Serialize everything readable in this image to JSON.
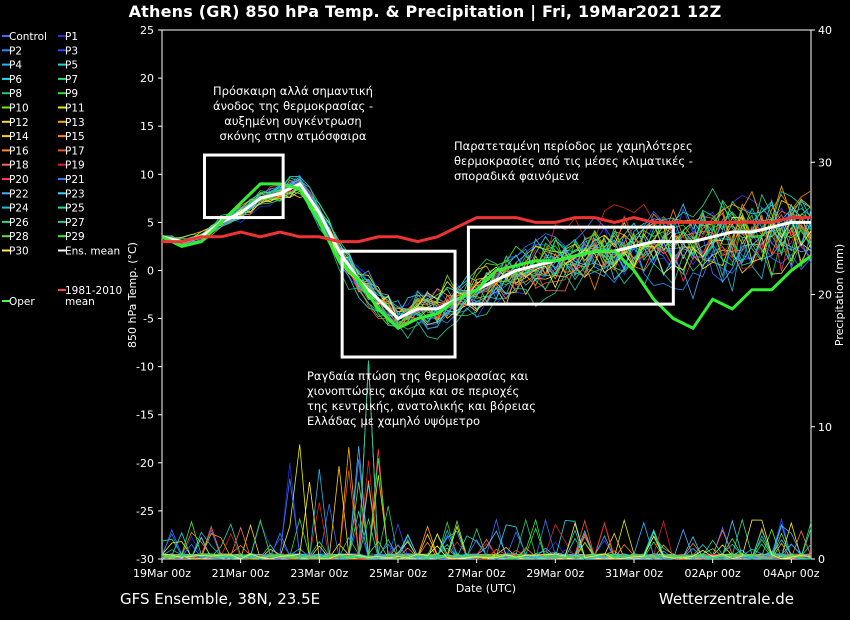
{
  "title": "Athens  (GR)  850 hPa Temp. & Precipitation | Fri, 19Mar2021 12Z",
  "footer": {
    "left": "GFS Ensemble, 38N, 23.5E",
    "right": "Wetterzentrale.de"
  },
  "annotations": {
    "rise": [
      "Πρόσκαιρη αλλά σημαντική",
      "άνοδος της θερμοκρασίας -",
      "αυξημένη συγκέντρωση",
      "σκόνης στην ατμόσφαιρα"
    ],
    "cold": [
      "Παρατεταμένη περίοδος με χαμηλότερες",
      "θερμοκρασίες από τις μέσες κλιματικές -",
      "σποραδικά φαινόμενα"
    ],
    "drop": [
      "Ραγδαία πτώση της θερμοκρασίας και",
      "χιονοπτώσεις ακόμα και σε περιοχές",
      "της κεντρικής, ανατολικής και βόρειας",
      "Ελλάδας με χαμηλό υψόμετρο"
    ]
  },
  "chart_data": {
    "type": "line",
    "xlabel": "Date (UTC)",
    "ylabel": "850 hPa Temp. (°C)",
    "y2label": "Precipitation (mm)",
    "ylim": [
      -30,
      25
    ],
    "y2lim": [
      0,
      40
    ],
    "yticks": [
      25,
      20,
      15,
      10,
      5,
      0,
      -5,
      -10,
      -15,
      -20,
      -25,
      -30
    ],
    "y2ticks": [
      40,
      30,
      20,
      10,
      0
    ],
    "xticks": [
      "19Mar 00z",
      "21Mar 00z",
      "23Mar 00z",
      "25Mar 00z",
      "27Mar 00z",
      "29Mar 00z",
      "31Mar 00z",
      "02Apr 00z",
      "04Apr 00z"
    ],
    "x_range_days": [
      0,
      16.5
    ],
    "legend": {
      "placement": "left",
      "entries": [
        {
          "name": "Control",
          "color": "#3a6cff"
        },
        {
          "name": "P1",
          "color": "#2233dd"
        },
        {
          "name": "P2",
          "color": "#2a8cff"
        },
        {
          "name": "P3",
          "color": "#3344ff"
        },
        {
          "name": "P4",
          "color": "#22bbff"
        },
        {
          "name": "P5",
          "color": "#22d6cc"
        },
        {
          "name": "P6",
          "color": "#22ddee"
        },
        {
          "name": "P7",
          "color": "#22dd88"
        },
        {
          "name": "P8",
          "color": "#22cc66"
        },
        {
          "name": "P9",
          "color": "#33dd33"
        },
        {
          "name": "P10",
          "color": "#66ee00"
        },
        {
          "name": "P11",
          "color": "#eeee00"
        },
        {
          "name": "P12",
          "color": "#eedd44"
        },
        {
          "name": "P13",
          "color": "#ffaa00"
        },
        {
          "name": "P14",
          "color": "#ffcc22"
        },
        {
          "name": "P15",
          "color": "#ff8800"
        },
        {
          "name": "P16",
          "color": "#ff8833"
        },
        {
          "name": "P17",
          "color": "#ee5522"
        },
        {
          "name": "P18",
          "color": "#ff6655"
        },
        {
          "name": "P19",
          "color": "#dd2222"
        },
        {
          "name": "P20",
          "color": "#ff3355"
        },
        {
          "name": "P21",
          "color": "#3377ff"
        },
        {
          "name": "P22",
          "color": "#55aaff"
        },
        {
          "name": "P23",
          "color": "#44ccff"
        },
        {
          "name": "P24",
          "color": "#22bbdd"
        },
        {
          "name": "P25",
          "color": "#22ddaa"
        },
        {
          "name": "P26",
          "color": "#22dd88"
        },
        {
          "name": "P27",
          "color": "#22cc99"
        },
        {
          "name": "P28",
          "color": "#66dd44"
        },
        {
          "name": "P29",
          "color": "#33ee33"
        },
        {
          "name": "P30",
          "color": "#ffee44"
        },
        {
          "name": "Ens. mean",
          "color": "#ffffff"
        },
        {
          "name": "Oper",
          "color": "#44ff44"
        },
        {
          "name": "1981-2010 mean",
          "color": "#ff4444"
        }
      ]
    },
    "series": [
      {
        "name": "Ens. mean",
        "x": [
          0,
          0.5,
          1,
          1.5,
          2,
          2.5,
          3,
          3.5,
          4,
          4.5,
          5,
          5.5,
          6,
          6.5,
          7,
          7.5,
          8,
          8.5,
          9,
          9.5,
          10,
          10.5,
          11,
          11.5,
          12,
          12.5,
          13,
          13.5,
          14,
          14.5,
          15,
          15.5,
          16,
          16.5
        ],
        "y": [
          3.5,
          3,
          3.5,
          5,
          6,
          7.5,
          8,
          9,
          6,
          2,
          -1,
          -3,
          -5,
          -4,
          -4,
          -3,
          -2,
          -1,
          0,
          0.5,
          1,
          1.5,
          2,
          2,
          2.5,
          3,
          3,
          3,
          3.5,
          4,
          4,
          4.5,
          5,
          5
        ]
      },
      {
        "name": "Oper",
        "x": [
          0,
          0.5,
          1,
          1.5,
          2,
          2.5,
          3,
          3.5,
          4,
          4.5,
          5,
          5.5,
          6,
          6.5,
          7,
          7.5,
          8,
          8.5,
          9,
          9.5,
          10,
          10.5,
          11,
          11.5,
          12,
          12.5,
          13,
          13.5,
          14,
          14.5,
          15,
          15.5,
          16,
          16.5
        ],
        "y": [
          3.5,
          2.5,
          3,
          5,
          7,
          9,
          9,
          8.5,
          5,
          1,
          -1,
          -4,
          -6,
          -5,
          -4.5,
          -3,
          -2,
          0,
          0.5,
          1,
          1,
          1.5,
          2,
          2,
          0,
          -3,
          -5,
          -6,
          -3,
          -4,
          -2,
          -2,
          0,
          1.5
        ]
      },
      {
        "name": "1981-2010 mean",
        "x": [
          0,
          0.5,
          1,
          1.5,
          2,
          2.5,
          3,
          3.5,
          4,
          4.5,
          5,
          5.5,
          6,
          6.5,
          7,
          7.5,
          8,
          8.5,
          9,
          9.5,
          10,
          10.5,
          11,
          11.5,
          12,
          12.5,
          13,
          13.5,
          14,
          14.5,
          15,
          15.5,
          16,
          16.5
        ],
        "y": [
          3,
          3,
          3.5,
          3.5,
          4,
          3.5,
          4,
          3.5,
          3.5,
          3,
          3,
          3.5,
          3.5,
          3,
          3.5,
          4.5,
          5.5,
          5.5,
          5.5,
          5,
          5,
          5.5,
          5.5,
          5,
          5.5,
          5,
          5,
          5,
          5,
          5,
          5,
          5,
          5.5,
          5.5
        ]
      }
    ],
    "boxes_data": [
      {
        "x": [
          1.08,
          3.08
        ],
        "y": [
          5.5,
          12
        ]
      },
      {
        "x": [
          4.58,
          7.45
        ],
        "y": [
          -9,
          2
        ]
      },
      {
        "x": [
          7.79,
          13.0
        ],
        "y": [
          -3.5,
          4.5
        ]
      }
    ]
  }
}
